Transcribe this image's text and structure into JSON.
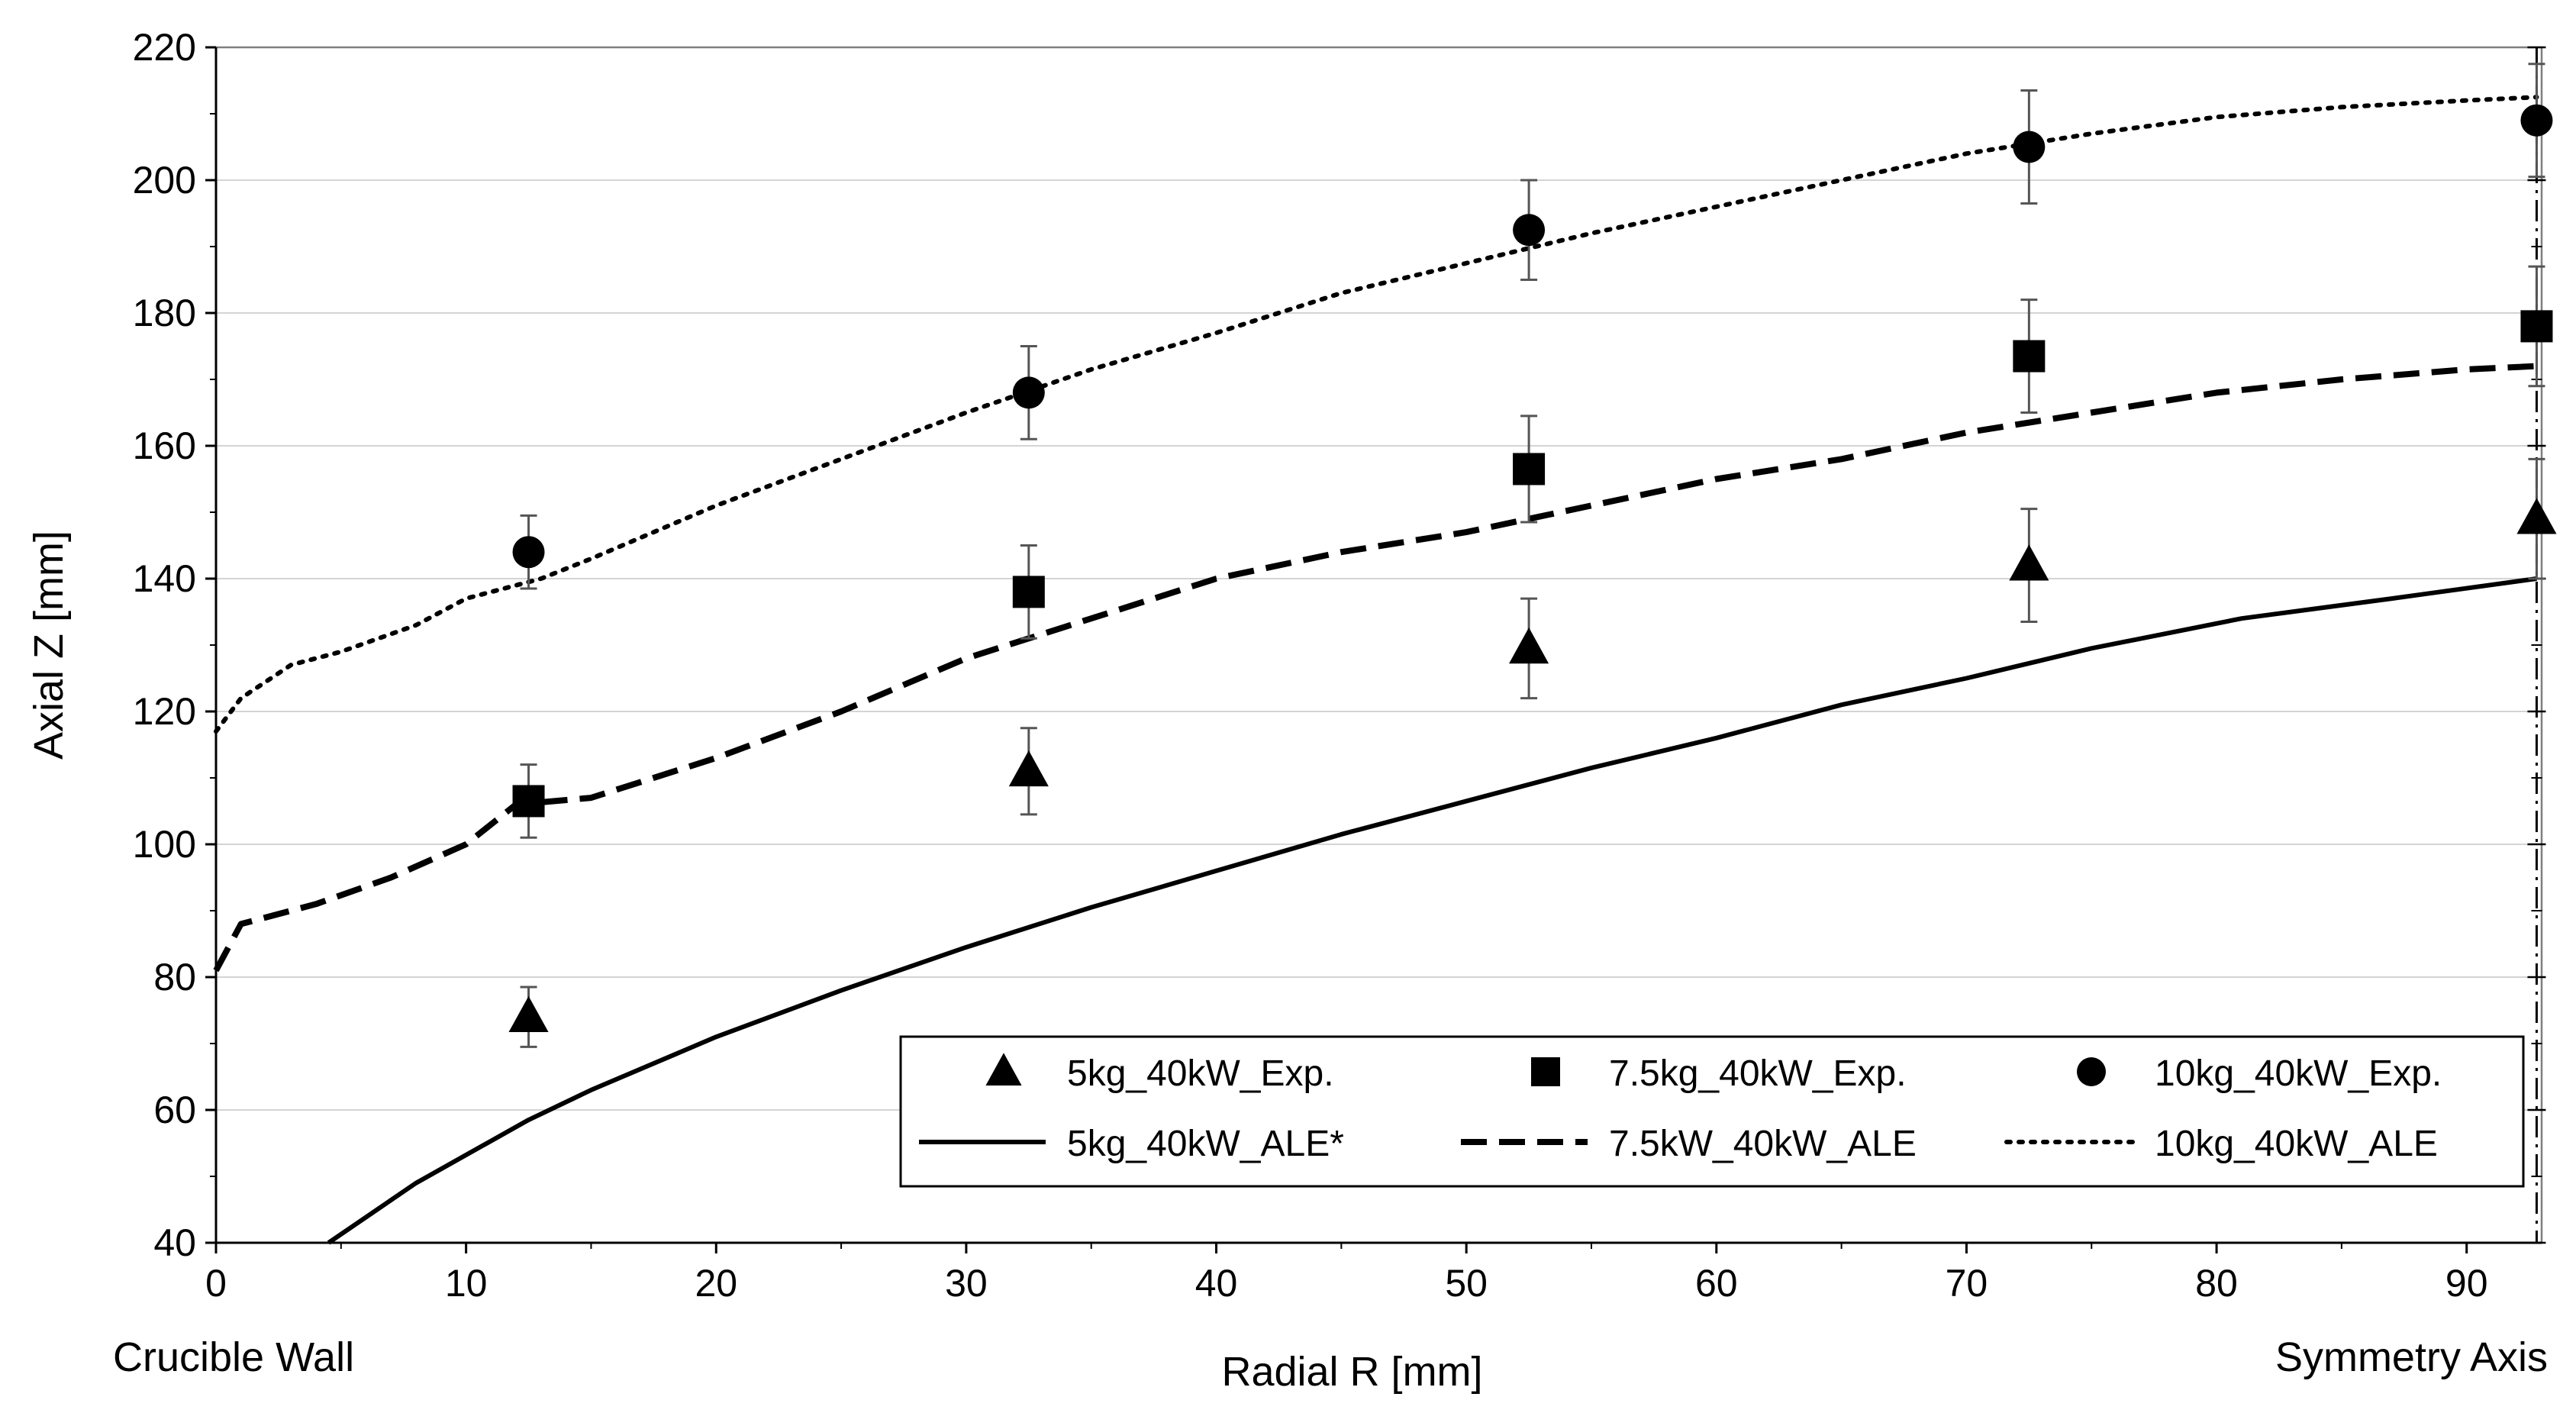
{
  "chart_data": {
    "type": "scatter",
    "title": "",
    "xlabel": "Radial R [mm]",
    "ylabel": "Axial Z [mm]",
    "xlim": [
      0,
      93
    ],
    "ylim": [
      40,
      220
    ],
    "xticks": [
      0,
      10,
      20,
      30,
      40,
      50,
      60,
      70,
      80,
      90
    ],
    "yticks": [
      40,
      60,
      80,
      100,
      120,
      140,
      160,
      180,
      200,
      220
    ],
    "grid": "horizontal",
    "x_annotations": {
      "left": "Crucible Wall",
      "right": "Symmetry Axis"
    },
    "symmetry_axis_x": 92.8,
    "legend_position": "lower-right",
    "series": [
      {
        "name": "5kg_40kW_Exp.",
        "kind": "marker",
        "marker": "triangle",
        "points": [
          {
            "x": 12.5,
            "y": 74,
            "err": 4.5
          },
          {
            "x": 32.5,
            "y": 111,
            "err": 6.5
          },
          {
            "x": 52.5,
            "y": 129.5,
            "err": 7.5
          },
          {
            "x": 72.5,
            "y": 142,
            "err": 8.5
          },
          {
            "x": 92.8,
            "y": 149,
            "err": 9
          }
        ]
      },
      {
        "name": "7.5kg_40kW_Exp.",
        "kind": "marker",
        "marker": "square",
        "points": [
          {
            "x": 12.5,
            "y": 106.5,
            "err": 5.5
          },
          {
            "x": 32.5,
            "y": 138,
            "err": 7
          },
          {
            "x": 52.5,
            "y": 156.5,
            "err": 8
          },
          {
            "x": 72.5,
            "y": 173.5,
            "err": 8.5
          },
          {
            "x": 92.8,
            "y": 178,
            "err": 9
          }
        ]
      },
      {
        "name": "10kg_40kW_Exp.",
        "kind": "marker",
        "marker": "circle",
        "points": [
          {
            "x": 12.5,
            "y": 144,
            "err": 5.5
          },
          {
            "x": 32.5,
            "y": 168,
            "err": 7
          },
          {
            "x": 52.5,
            "y": 192.5,
            "err": 7.5
          },
          {
            "x": 72.5,
            "y": 205,
            "err": 8.5
          },
          {
            "x": 92.8,
            "y": 209,
            "err": 8.5
          }
        ]
      },
      {
        "name": "5kg_40kW_ALE*",
        "kind": "line",
        "style": "solid",
        "x": [
          4.5,
          8,
          12.5,
          15,
          20,
          25,
          30,
          35,
          40,
          45,
          50,
          55,
          60,
          65,
          70,
          75,
          81,
          87,
          92.8
        ],
        "y": [
          40,
          49,
          58.5,
          63,
          71,
          78,
          84.5,
          90.5,
          96,
          101.5,
          106.5,
          111.5,
          116,
          121,
          125,
          129.5,
          134,
          137,
          140
        ]
      },
      {
        "name": "7.5kW_40kW_ALE",
        "kind": "line",
        "style": "dashed",
        "x": [
          0,
          1,
          4,
          7,
          10,
          12,
          15,
          20,
          25,
          30,
          35,
          40,
          45,
          50,
          55,
          60,
          65,
          70,
          75,
          80,
          85,
          90,
          92.8
        ],
        "y": [
          81,
          88,
          91,
          95,
          100,
          106,
          107,
          113,
          120,
          128,
          134,
          140,
          144,
          147,
          151,
          155,
          158,
          162,
          165,
          168,
          170,
          171.5,
          172
        ]
      },
      {
        "name": "10kg_40kW_ALE",
        "kind": "line",
        "style": "dotted",
        "x": [
          0,
          1,
          3,
          5,
          8,
          10,
          13,
          15,
          20,
          25,
          30,
          35,
          40,
          45,
          50,
          55,
          60,
          65,
          70,
          75,
          80,
          85,
          90,
          92.8
        ],
        "y": [
          117,
          122,
          127,
          129,
          133,
          137,
          140,
          143,
          151,
          158,
          165,
          171.5,
          177,
          183,
          187.5,
          192,
          196,
          200,
          204,
          207,
          209.5,
          211,
          212,
          212.5
        ]
      }
    ]
  }
}
